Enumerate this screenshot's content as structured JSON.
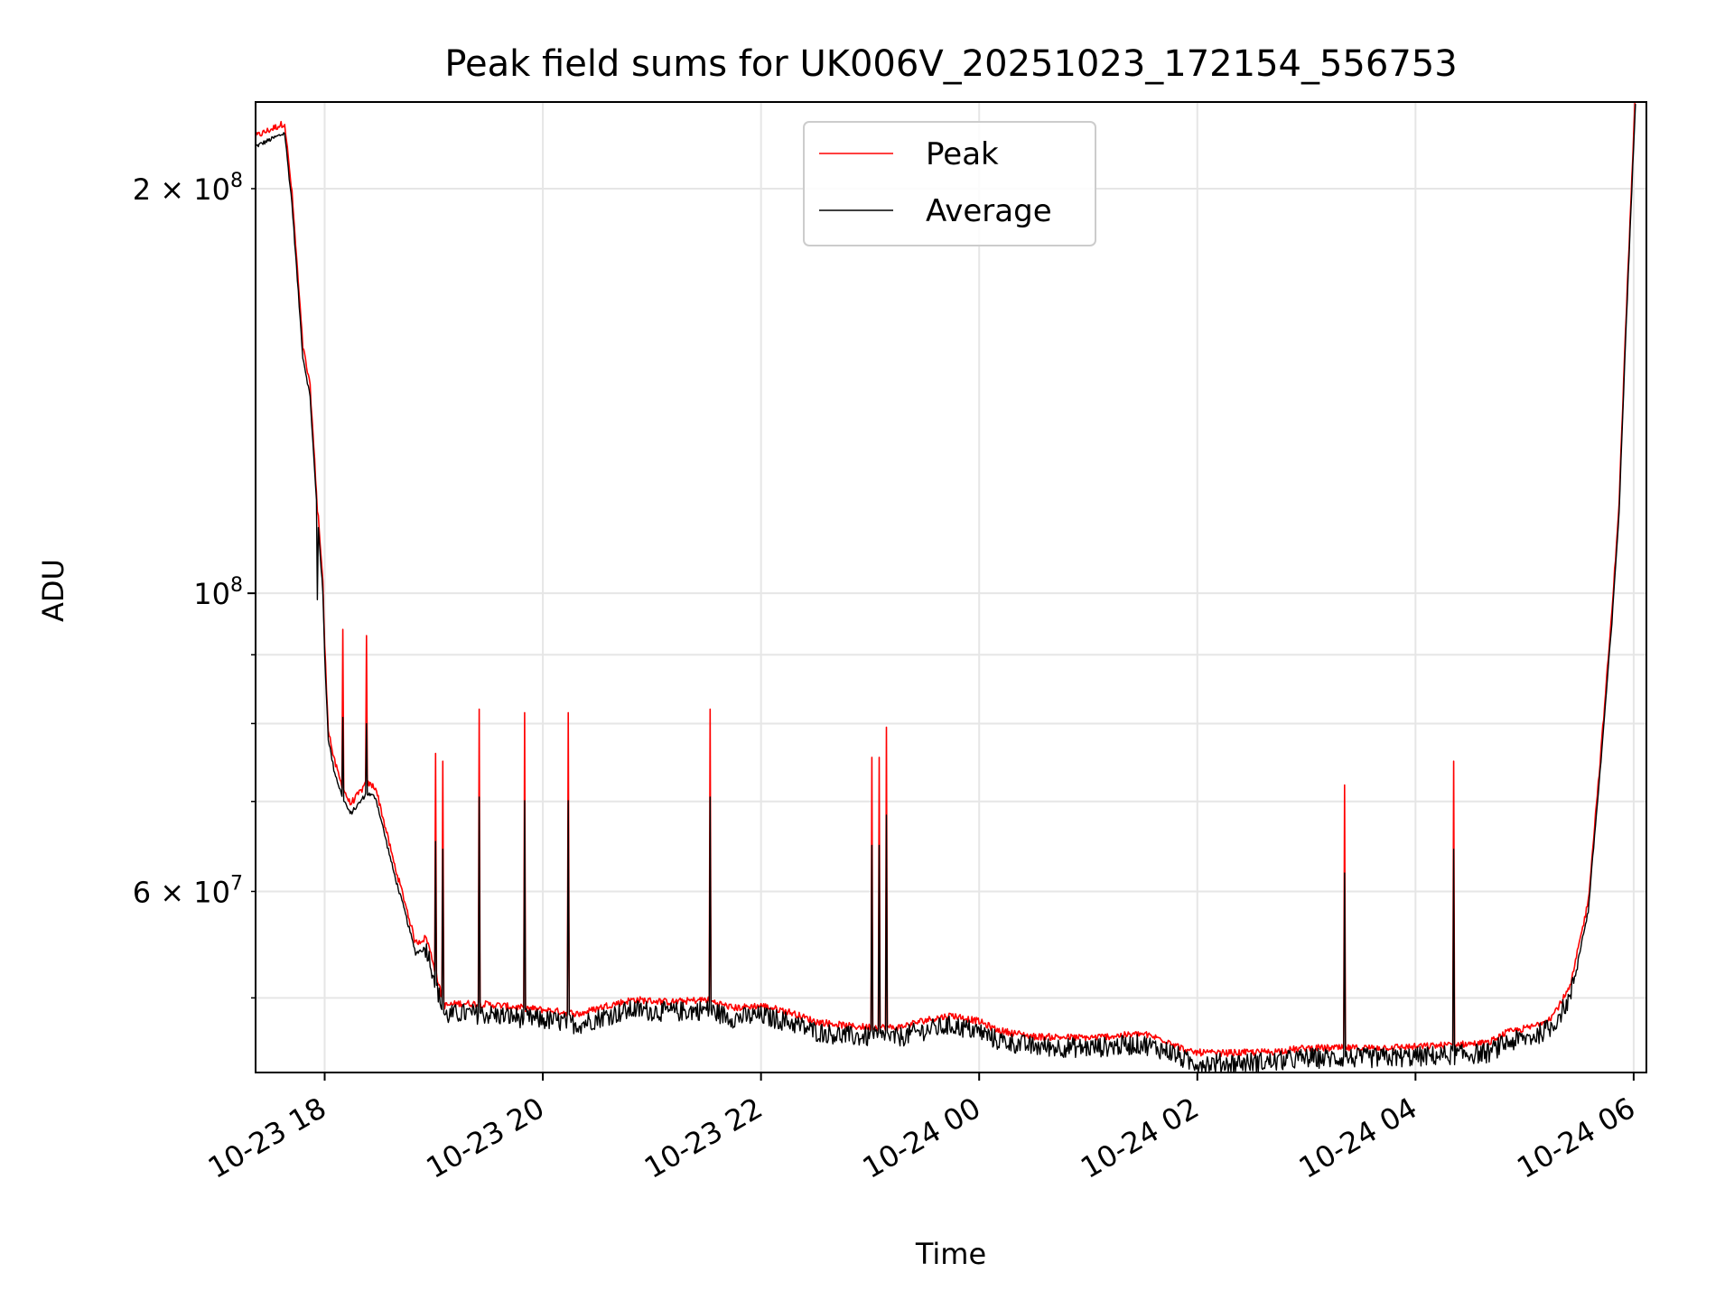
{
  "chart_data": {
    "type": "line",
    "title": "Peak field sums for UK006V_20251023_172154_556753",
    "xlabel": "Time",
    "ylabel": "ADU",
    "x_axis": {
      "kind": "datetime",
      "range": [
        "2025-10-23 17:22",
        "2025-10-24 06:07"
      ],
      "ticks": [
        "2025-10-23 18:00",
        "2025-10-23 20:00",
        "2025-10-23 22:00",
        "2025-10-24 00:00",
        "2025-10-24 02:00",
        "2025-10-24 04:00",
        "2025-10-24 06:00"
      ],
      "tick_labels": [
        "10-23 18",
        "10-23 20",
        "10-23 22",
        "10-24 00",
        "10-24 02",
        "10-24 04",
        "10-24 06"
      ]
    },
    "y_axis": {
      "scale": "log",
      "range": [
        44000000,
        232000000
      ],
      "major_ticks": [
        100000000
      ],
      "major_tick_labels": [
        "10^8"
      ],
      "minor_ticks": [
        50000000,
        60000000,
        70000000,
        80000000,
        90000000,
        200000000
      ],
      "labeled_minor_ticks": [
        {
          "value": 60000000,
          "mantissa": "6",
          "exponent": "7"
        },
        {
          "value": 200000000,
          "mantissa": "2",
          "exponent": "8"
        }
      ]
    },
    "grid": true,
    "legend": {
      "position": "top-center",
      "entries": [
        "Peak",
        "Average"
      ]
    },
    "colors": {
      "Peak": "#ff0000",
      "Average": "#000000",
      "grid": "#e6e6e6"
    },
    "series": [
      {
        "name": "Average",
        "color": "#000000",
        "points": [
          [
            "2025-10-23 17:22",
            215000000
          ],
          [
            "2025-10-23 17:38",
            220000000
          ],
          [
            "2025-10-23 17:42",
            195000000
          ],
          [
            "2025-10-23 17:48",
            150000000
          ],
          [
            "2025-10-23 17:52",
            140000000
          ],
          [
            "2025-10-23 17:55",
            120000000
          ],
          [
            "2025-10-23 17:59",
            100000000
          ],
          [
            "2025-10-23 18:00",
            90000000
          ],
          [
            "2025-10-23 18:02",
            78000000
          ],
          [
            "2025-10-23 18:05",
            74000000
          ],
          [
            "2025-10-23 18:09",
            71000000
          ],
          [
            "2025-10-23 18:14",
            68500000
          ],
          [
            "2025-10-23 18:18",
            69500000
          ],
          [
            "2025-10-23 18:23",
            71000000
          ],
          [
            "2025-10-23 18:28",
            70500000
          ],
          [
            "2025-10-23 18:32",
            67000000
          ],
          [
            "2025-10-23 18:38",
            62000000
          ],
          [
            "2025-10-23 18:44",
            58000000
          ],
          [
            "2025-10-23 18:50",
            54000000
          ],
          [
            "2025-10-23 18:56",
            54500000
          ],
          [
            "2025-10-23 19:00",
            52000000
          ],
          [
            "2025-10-23 19:04",
            49500000
          ],
          [
            "2025-10-23 19:06",
            48500000
          ],
          [
            "2025-10-23 19:15",
            48700000
          ],
          [
            "2025-10-23 19:30",
            48600000
          ],
          [
            "2025-10-23 19:50",
            48300000
          ],
          [
            "2025-10-23 20:10",
            48000000
          ],
          [
            "2025-10-23 20:20",
            47800000
          ],
          [
            "2025-10-23 20:35",
            48500000
          ],
          [
            "2025-10-23 20:50",
            49000000
          ],
          [
            "2025-10-23 21:10",
            48800000
          ],
          [
            "2025-10-23 21:30",
            49000000
          ],
          [
            "2025-10-23 21:45",
            48300000
          ],
          [
            "2025-10-23 22:00",
            48500000
          ],
          [
            "2025-10-23 22:15",
            48000000
          ],
          [
            "2025-10-23 22:30",
            47200000
          ],
          [
            "2025-10-23 22:50",
            46800000
          ],
          [
            "2025-10-23 23:15",
            46700000
          ],
          [
            "2025-10-23 23:30",
            47300000
          ],
          [
            "2025-10-23 23:45",
            47700000
          ],
          [
            "2025-10-24 00:00",
            47200000
          ],
          [
            "2025-10-24 00:10",
            46500000
          ],
          [
            "2025-10-24 00:30",
            46000000
          ],
          [
            "2025-10-24 01:00",
            45900000
          ],
          [
            "2025-10-24 01:30",
            46200000
          ],
          [
            "2025-10-24 01:45",
            45600000
          ],
          [
            "2025-10-24 01:55",
            44800000
          ],
          [
            "2025-10-24 02:10",
            44700000
          ],
          [
            "2025-10-24 02:40",
            44800000
          ],
          [
            "2025-10-24 03:00",
            45100000
          ],
          [
            "2025-10-24 03:30",
            45100000
          ],
          [
            "2025-10-24 04:00",
            45200000
          ],
          [
            "2025-10-24 04:40",
            45500000
          ],
          [
            "2025-10-24 04:50",
            46300000
          ],
          [
            "2025-10-24 05:05",
            46800000
          ],
          [
            "2025-10-24 05:15",
            47600000
          ],
          [
            "2025-10-24 05:25",
            50000000
          ],
          [
            "2025-10-24 05:35",
            58000000
          ],
          [
            "2025-10-24 05:42",
            75000000
          ],
          [
            "2025-10-24 05:48",
            95000000
          ],
          [
            "2025-10-24 05:52",
            115000000
          ],
          [
            "2025-10-24 05:56",
            160000000
          ],
          [
            "2025-10-24 05:59",
            200000000
          ],
          [
            "2025-10-24 06:01",
            232000000
          ]
        ]
      },
      {
        "name": "Peak",
        "color": "#ff0000",
        "spikes": [
          {
            "time": "2025-10-23 17:56",
            "value": 115000000
          },
          {
            "time": "2025-10-23 18:10",
            "value": 94000000
          },
          {
            "time": "2025-10-23 18:23",
            "value": 93000000
          },
          {
            "time": "2025-10-23 19:01",
            "value": 76000000
          },
          {
            "time": "2025-10-23 19:05",
            "value": 75000000
          },
          {
            "time": "2025-10-23 19:25",
            "value": 82000000
          },
          {
            "time": "2025-10-23 19:50",
            "value": 81500000
          },
          {
            "time": "2025-10-23 20:14",
            "value": 81500000
          },
          {
            "time": "2025-10-23 21:32",
            "value": 82000000
          },
          {
            "time": "2025-10-23 23:01",
            "value": 75500000
          },
          {
            "time": "2025-10-23 23:05",
            "value": 75500000
          },
          {
            "time": "2025-10-23 23:09",
            "value": 79500000
          },
          {
            "time": "2025-10-24 03:21",
            "value": 72000000
          },
          {
            "time": "2025-10-24 04:21",
            "value": 75000000
          }
        ],
        "note_relation": "follows Average with values about 1-2% higher"
      }
    ]
  }
}
